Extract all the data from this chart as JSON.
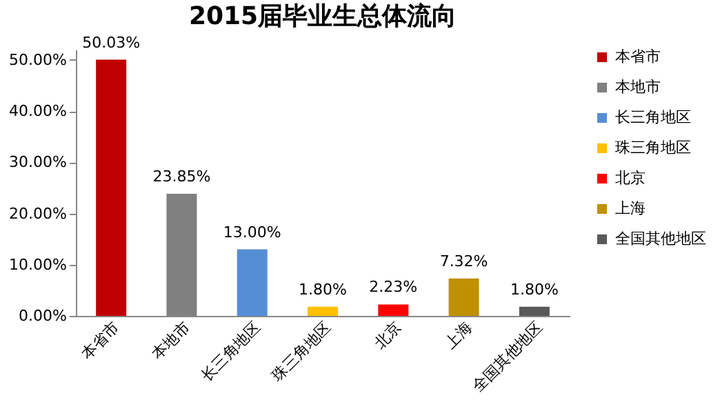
{
  "chart_data": {
    "type": "bar",
    "title": "2015届毕业生总体流向",
    "stacked": true,
    "categories": [
      "本省市",
      "本地市",
      "长三角地区",
      "珠三角地区",
      "北京",
      "上海",
      "全国其他地区"
    ],
    "series": [
      {
        "name": "本省市",
        "color": "#c00000",
        "values": [
          50.03,
          null,
          null,
          null,
          null,
          null,
          null
        ],
        "value_labels": [
          "50.03%",
          null,
          null,
          null,
          null,
          null,
          null
        ]
      },
      {
        "name": "本地市",
        "color": "#808080",
        "values": [
          null,
          23.85,
          null,
          null,
          null,
          null,
          null
        ],
        "value_labels": [
          null,
          "23.85%",
          null,
          null,
          null,
          null,
          null
        ]
      },
      {
        "name": "长三角地区",
        "color": "#558ed5",
        "values": [
          null,
          null,
          13.0,
          null,
          null,
          null,
          null
        ],
        "value_labels": [
          null,
          null,
          "13.00%",
          null,
          null,
          null,
          null
        ]
      },
      {
        "name": "珠三角地区",
        "color": "#ffc000",
        "values": [
          null,
          null,
          null,
          1.8,
          null,
          null,
          null
        ],
        "value_labels": [
          null,
          null,
          null,
          "1.80%",
          null,
          null,
          null
        ]
      },
      {
        "name": "北京",
        "color": "#ff0000",
        "values": [
          null,
          null,
          null,
          null,
          2.23,
          null,
          null
        ],
        "value_labels": [
          null,
          null,
          null,
          null,
          "2.23%",
          null,
          null
        ]
      },
      {
        "name": "上海",
        "color": "#bf9000",
        "values": [
          null,
          null,
          null,
          null,
          null,
          7.32,
          null
        ],
        "value_labels": [
          null,
          null,
          null,
          null,
          null,
          "7.32%",
          null
        ]
      },
      {
        "name": "全国其他地区",
        "color": "#595959",
        "values": [
          null,
          null,
          null,
          null,
          null,
          null,
          1.8
        ],
        "value_labels": [
          null,
          null,
          null,
          null,
          null,
          null,
          "1.80%"
        ]
      }
    ],
    "ylim": [
      0,
      52
    ],
    "yticks": [
      {
        "value": 0,
        "label": "0.00%"
      },
      {
        "value": 10,
        "label": "10.00%"
      },
      {
        "value": 20,
        "label": "20.00%"
      },
      {
        "value": 30,
        "label": "30.00%"
      },
      {
        "value": 40,
        "label": "40.00%"
      },
      {
        "value": 50,
        "label": "50.00%"
      }
    ],
    "legend": "right"
  }
}
